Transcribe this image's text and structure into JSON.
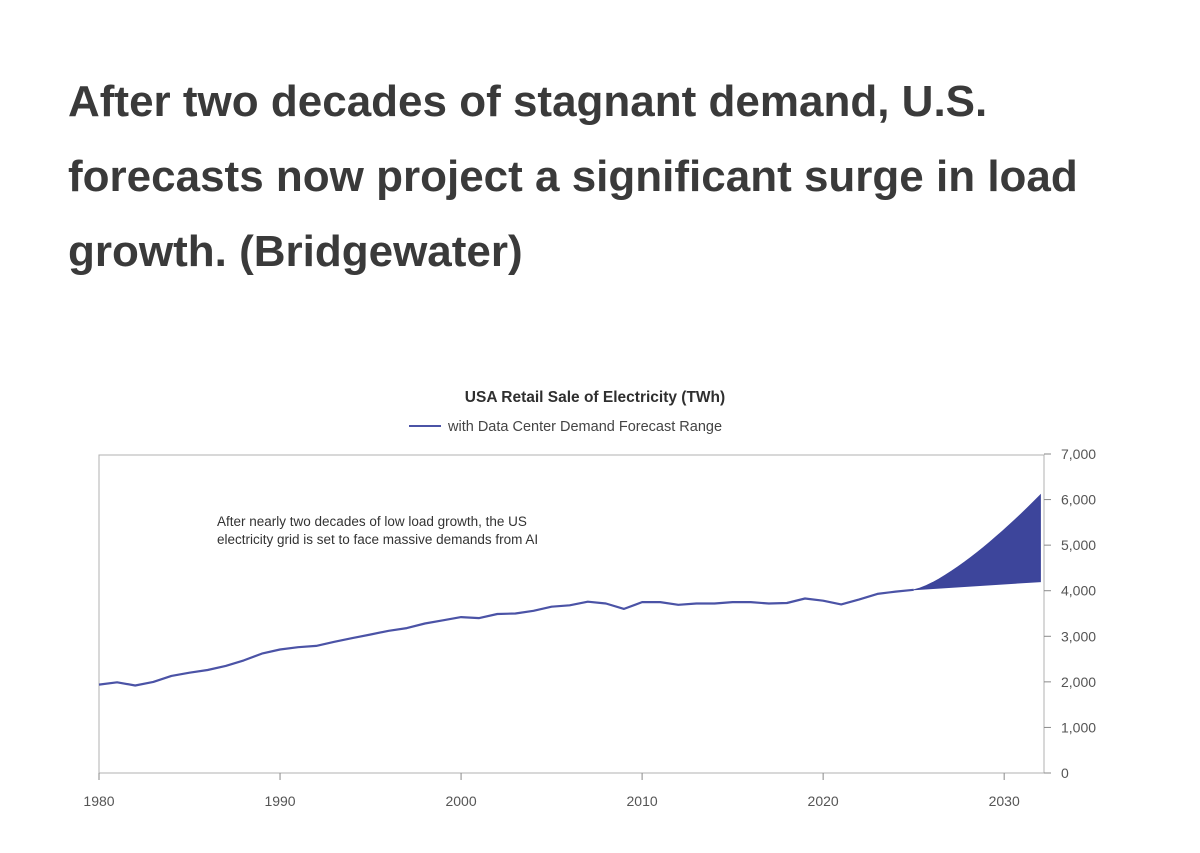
{
  "headline": "After two decades of stagnant demand, U.S. forecasts now project a significant surge in load growth. (Bridgewater)",
  "colors": {
    "line": "#4b53a6",
    "forecast": "#3d459b",
    "axis": "#9a9a9a",
    "text": "#3a3a3a"
  },
  "chart_data": {
    "type": "line",
    "title": "USA Retail Sale of Electricity (TWh)",
    "legend": "with Data Center Demand Forecast Range",
    "legend_position": "top-center",
    "annotation": [
      "After nearly two decades of low load growth, the US",
      "electricity grid is set to face massive demands from AI"
    ],
    "xlabel": "",
    "ylabel": "",
    "xlim": [
      1980,
      2032.2
    ],
    "ylim": [
      0,
      7000
    ],
    "y_axis_side": "right",
    "x_ticks": [
      1980,
      1990,
      2000,
      2010,
      2020,
      2030
    ],
    "x_tick_labels": [
      "1980",
      "1990",
      "2000",
      "2010",
      "2020",
      "2030"
    ],
    "y_ticks": [
      0,
      1000,
      2000,
      3000,
      4000,
      5000,
      6000,
      7000
    ],
    "y_tick_labels": [
      "0",
      "1,000",
      "2,000",
      "3,000",
      "4,000",
      "5,000",
      "6,000",
      "7,000"
    ],
    "series": [
      {
        "name": "USA Retail Sale of Electricity",
        "x": [
          1980,
          1981,
          1982,
          1983,
          1984,
          1985,
          1986,
          1987,
          1988,
          1989,
          1990,
          1991,
          1992,
          1993,
          1994,
          1995,
          1996,
          1997,
          1998,
          1999,
          2000,
          2001,
          2002,
          2003,
          2004,
          2005,
          2006,
          2007,
          2008,
          2009,
          2010,
          2011,
          2012,
          2013,
          2014,
          2015,
          2016,
          2017,
          2018,
          2019,
          2020,
          2021,
          2022,
          2023,
          2024,
          2025
        ],
        "values": [
          1940,
          1990,
          1920,
          2000,
          2130,
          2200,
          2260,
          2350,
          2470,
          2620,
          2710,
          2760,
          2790,
          2880,
          2960,
          3040,
          3120,
          3180,
          3280,
          3350,
          3420,
          3400,
          3490,
          3500,
          3560,
          3650,
          3680,
          3760,
          3720,
          3600,
          3750,
          3750,
          3690,
          3720,
          3720,
          3750,
          3750,
          3720,
          3730,
          3830,
          3780,
          3700,
          3810,
          3930,
          3980,
          4020
        ]
      }
    ],
    "forecast_range": {
      "name": "Data Center Demand Forecast Range",
      "x": [
        2025,
        2032
      ],
      "lower": [
        4020,
        4200
      ],
      "upper": [
        4020,
        6100
      ]
    }
  }
}
